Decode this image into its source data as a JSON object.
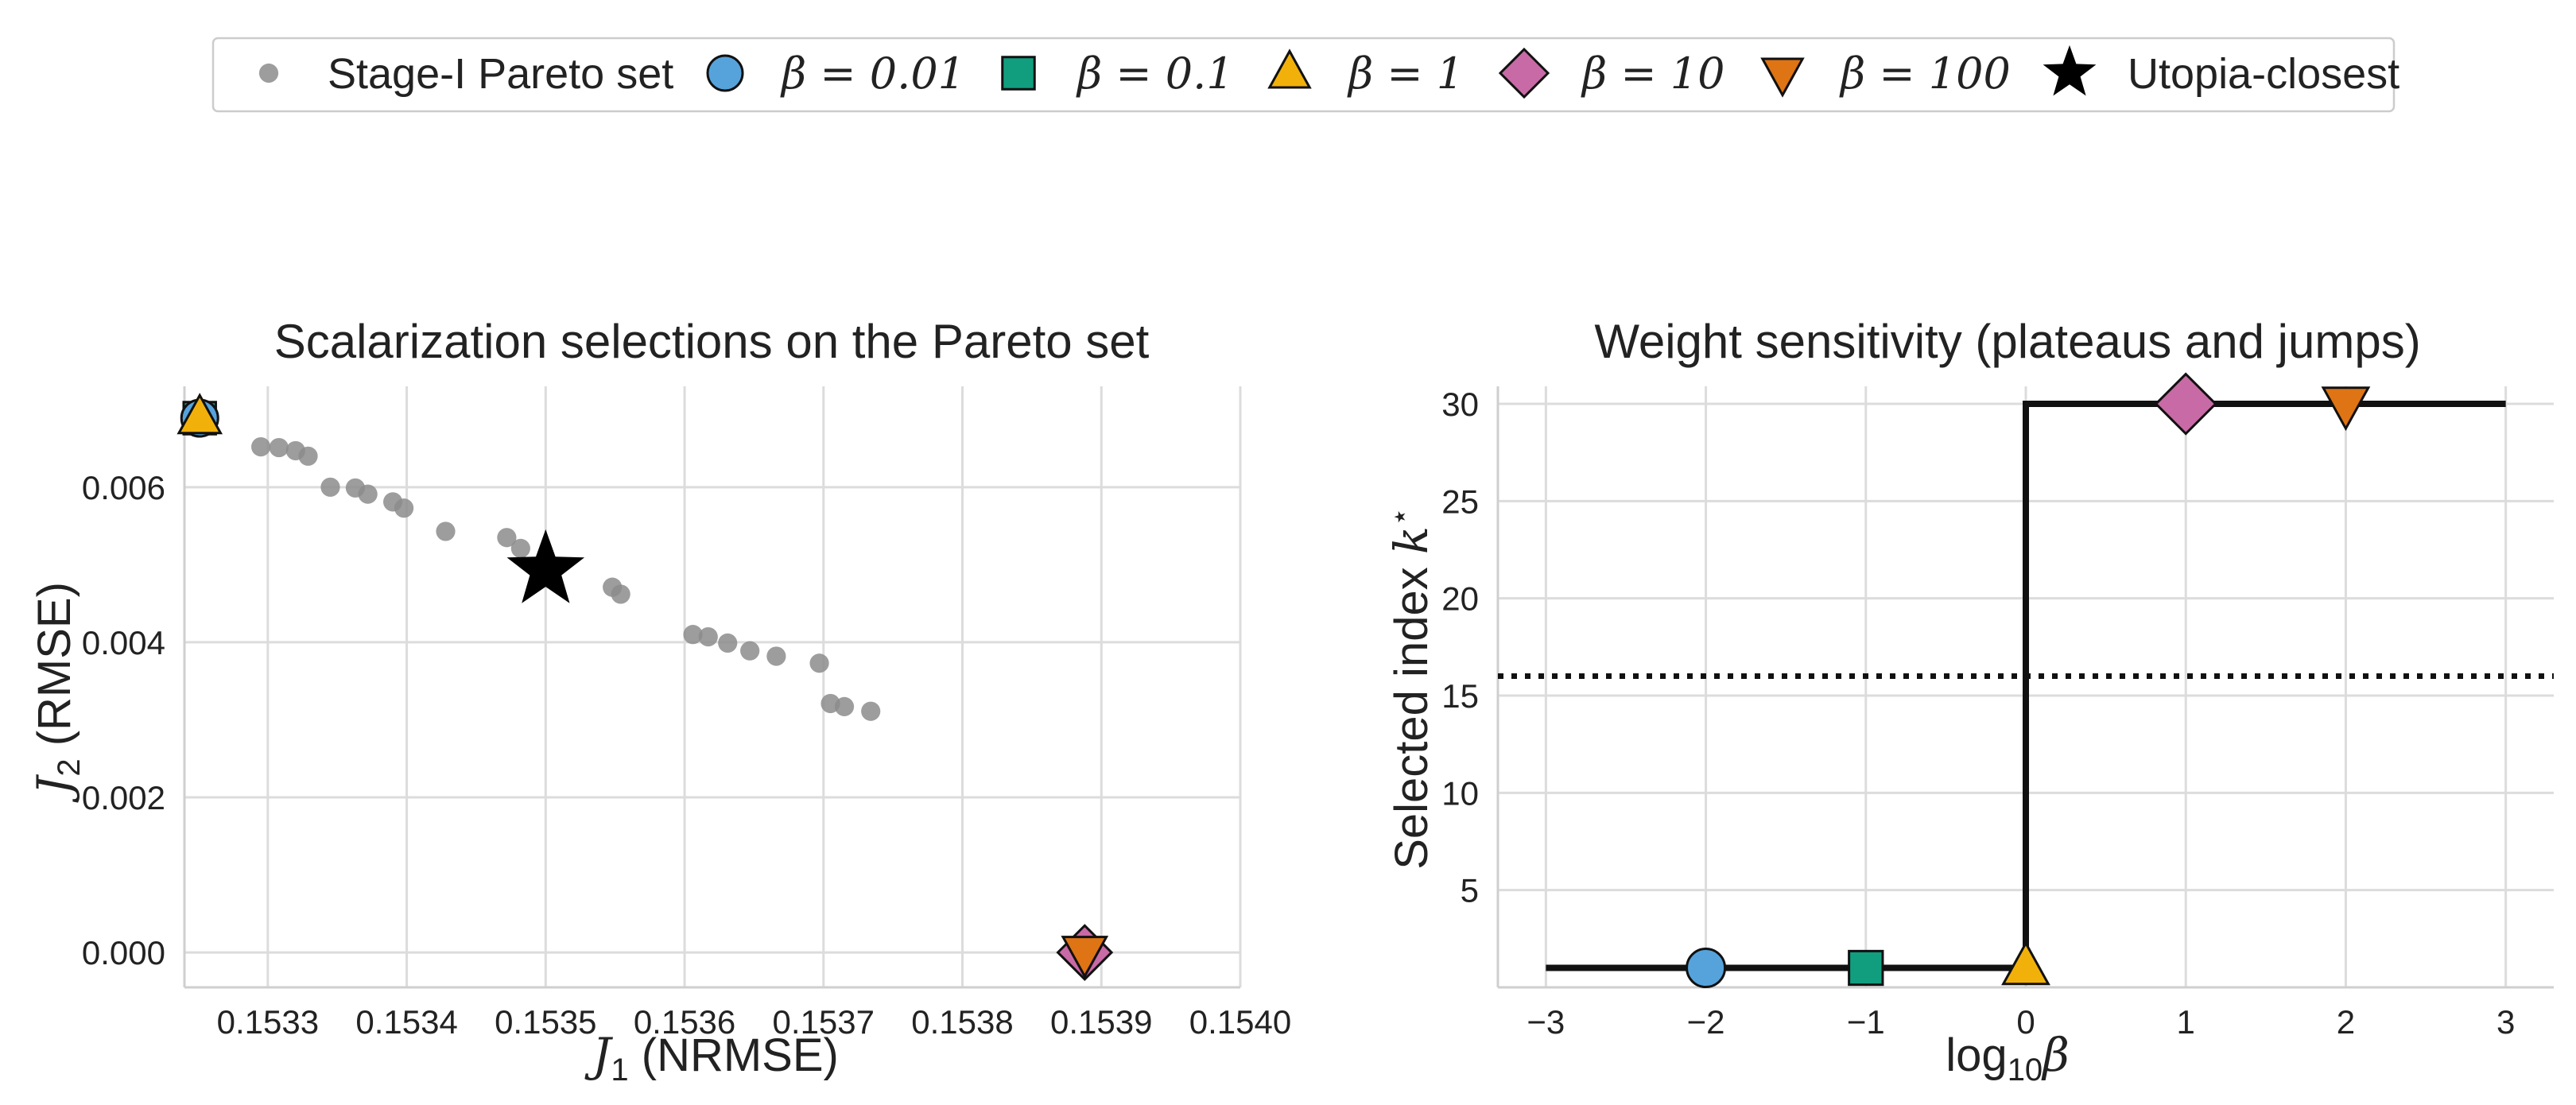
{
  "legend": {
    "entries": [
      {
        "key": "pareto",
        "label": "Stage-I Pareto set",
        "marker": "dot",
        "color": "#8c8c8c"
      },
      {
        "key": "b001",
        "label": "β = 0.01",
        "marker": "circle",
        "color": "#56a3dc"
      },
      {
        "key": "b01",
        "label": "β = 0.1",
        "marker": "square",
        "color": "#119e7f"
      },
      {
        "key": "b1",
        "label": "β = 1",
        "marker": "triangle-up",
        "color": "#f2b10a"
      },
      {
        "key": "b10",
        "label": "β = 10",
        "marker": "diamond",
        "color": "#c86aa5"
      },
      {
        "key": "b100",
        "label": "β = 100",
        "marker": "triangle-down",
        "color": "#de7414"
      },
      {
        "key": "utopia",
        "label": "Utopia-closest",
        "marker": "star",
        "color": "#000000"
      }
    ]
  },
  "chart_data": [
    {
      "type": "scatter",
      "title": "Scalarization selections on the Pareto set",
      "xlabel_var": "J",
      "xlabel_sub": "1",
      "xlabel_rest": " (NRMSE)",
      "ylabel_var": "J",
      "ylabel_sub": "2",
      "ylabel_rest": " (RMSE)",
      "xlim": [
        0.15324,
        0.154
      ],
      "ylim": [
        -0.00045,
        0.0073
      ],
      "xticks": [
        0.1533,
        0.1534,
        0.1535,
        0.1536,
        0.1537,
        0.1538,
        0.1539,
        0.154
      ],
      "xtick_labels": [
        "0.1533",
        "0.1534",
        "0.1535",
        "0.1536",
        "0.1537",
        "0.1538",
        "0.1539",
        "0.1540"
      ],
      "yticks": [
        0.0,
        0.002,
        0.004,
        0.006
      ],
      "ytick_labels": [
        "0.000",
        "0.002",
        "0.004",
        "0.006"
      ],
      "grid": true,
      "pareto_points": [
        [
          0.153295,
          0.00652
        ],
        [
          0.153308,
          0.00651
        ],
        [
          0.15332,
          0.00647
        ],
        [
          0.153329,
          0.0064
        ],
        [
          0.153345,
          0.006
        ],
        [
          0.153363,
          0.00599
        ],
        [
          0.153372,
          0.00591
        ],
        [
          0.15339,
          0.00581
        ],
        [
          0.153398,
          0.00573
        ],
        [
          0.153428,
          0.00543
        ],
        [
          0.153472,
          0.00535
        ],
        [
          0.153482,
          0.00521
        ],
        [
          0.153548,
          0.00471
        ],
        [
          0.153554,
          0.00462
        ],
        [
          0.153606,
          0.0041
        ],
        [
          0.153617,
          0.00407
        ],
        [
          0.153631,
          0.00399
        ],
        [
          0.153647,
          0.00389
        ],
        [
          0.153666,
          0.00382
        ],
        [
          0.153697,
          0.00373
        ],
        [
          0.153705,
          0.00321
        ],
        [
          0.153715,
          0.00317
        ],
        [
          0.153734,
          0.00311
        ]
      ],
      "selections": [
        {
          "key": "b01",
          "x": 0.153251,
          "y": 0.00689
        },
        {
          "key": "b001",
          "x": 0.153251,
          "y": 0.00689
        },
        {
          "key": "b1",
          "x": 0.153251,
          "y": 0.00689
        },
        {
          "key": "b10",
          "x": 0.153888,
          "y": 0.0
        },
        {
          "key": "b100",
          "x": 0.153888,
          "y": 0.0
        },
        {
          "key": "utopia",
          "x": 0.1535,
          "y": 0.00493
        }
      ]
    },
    {
      "type": "line",
      "title": "Weight sensitivity (plateaus and jumps)",
      "xlabel_pre": "log",
      "xlabel_sub": "10",
      "xlabel_var": "β",
      "ylabel": "Selected index ",
      "ylabel_var": "k",
      "ylabel_sup": "⋆",
      "xlim": [
        -3.3,
        3.3
      ],
      "ylim": [
        0.0,
        30.9
      ],
      "xticks": [
        -3,
        -2,
        -1,
        0,
        1,
        2,
        3
      ],
      "xtick_labels": [
        "−3",
        "−2",
        "−1",
        "0",
        "1",
        "2",
        "3"
      ],
      "yticks": [
        5,
        10,
        15,
        20,
        25,
        30
      ],
      "ytick_labels": [
        "5",
        "10",
        "15",
        "20",
        "25",
        "30"
      ],
      "grid": true,
      "step_line": [
        [
          -3,
          1
        ],
        [
          0,
          1
        ],
        [
          0,
          30
        ],
        [
          3,
          30
        ]
      ],
      "reference_line_y": 16,
      "selections": [
        {
          "key": "b001",
          "x": -2,
          "y": 1
        },
        {
          "key": "b01",
          "x": -1,
          "y": 1
        },
        {
          "key": "b1",
          "x": 0,
          "y": 1
        },
        {
          "key": "b10",
          "x": 1,
          "y": 30
        },
        {
          "key": "b100",
          "x": 2,
          "y": 30
        }
      ]
    }
  ]
}
